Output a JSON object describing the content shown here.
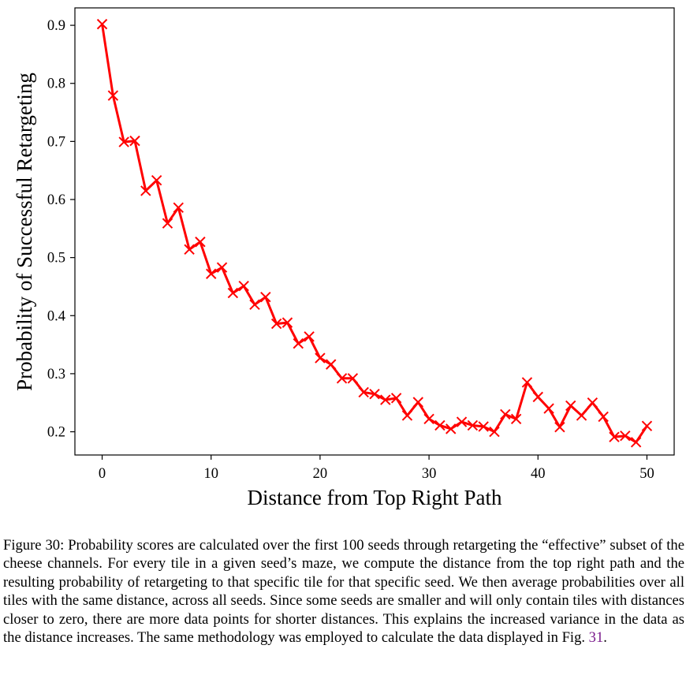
{
  "chart_data": {
    "type": "line",
    "title": "",
    "xlabel": "Distance from Top Right Path",
    "ylabel": "Probability of Successful Retargeting",
    "xlim": [
      -2.5,
      52.5
    ],
    "ylim": [
      0.16,
      0.93
    ],
    "xticks": [
      0,
      10,
      20,
      30,
      40,
      50
    ],
    "yticks": [
      0.2,
      0.3,
      0.4,
      0.5,
      0.6,
      0.7,
      0.8,
      0.9
    ],
    "grid": false,
    "marker": "x",
    "color": "#ff0000",
    "x": [
      0,
      1,
      2,
      3,
      4,
      5,
      6,
      7,
      8,
      9,
      10,
      11,
      12,
      13,
      14,
      15,
      16,
      17,
      18,
      19,
      20,
      21,
      22,
      23,
      24,
      25,
      26,
      27,
      28,
      29,
      30,
      31,
      32,
      33,
      34,
      35,
      36,
      37,
      38,
      39,
      40,
      41,
      42,
      43,
      44,
      45,
      46,
      47,
      48,
      49,
      50
    ],
    "y": [
      0.902,
      0.779,
      0.699,
      0.701,
      0.615,
      0.633,
      0.559,
      0.586,
      0.514,
      0.527,
      0.472,
      0.483,
      0.439,
      0.451,
      0.419,
      0.432,
      0.386,
      0.388,
      0.352,
      0.364,
      0.327,
      0.316,
      0.292,
      0.292,
      0.268,
      0.265,
      0.255,
      0.258,
      0.228,
      0.251,
      0.222,
      0.211,
      0.205,
      0.217,
      0.211,
      0.209,
      0.2,
      0.23,
      0.222,
      0.285,
      0.26,
      0.24,
      0.208,
      0.245,
      0.228,
      0.25,
      0.226,
      0.191,
      0.193,
      0.182,
      0.21
    ]
  },
  "caption": {
    "label": "Figure 30:",
    "text": " Probability scores are calculated over the first 100 seeds through retargeting the “effective” subset of the cheese channels. For every tile in a given seed’s maze, we compute the distance from the top right path and the resulting probability of retargeting to that specific tile for that specific seed. We then average probabilities over all tiles with the same distance, across all seeds. Since some seeds are smaller and will only contain tiles with distances closer to zero, there are more data points for shorter distances. This explains the increased variance in the data as the distance increases. The same methodology was employed to calculate the data displayed in Fig. ",
    "ref": "31",
    "end": "."
  }
}
